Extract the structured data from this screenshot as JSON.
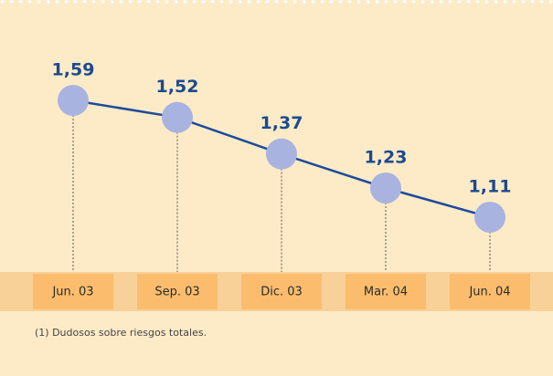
{
  "chart_data": {
    "type": "line",
    "categories": [
      "Jun. 03",
      "Sep. 03",
      "Dic. 03",
      "Mar. 04",
      "Jun. 04"
    ],
    "values": [
      1.59,
      1.52,
      1.37,
      1.23,
      1.11
    ],
    "value_labels": [
      "1,59",
      "1,52",
      "1,37",
      "1,23",
      "1,11"
    ],
    "color": "#1d4a9c",
    "marker_color": "#a9b3e0",
    "footnote": "(1) Dudosos sobre riesgos totales."
  }
}
